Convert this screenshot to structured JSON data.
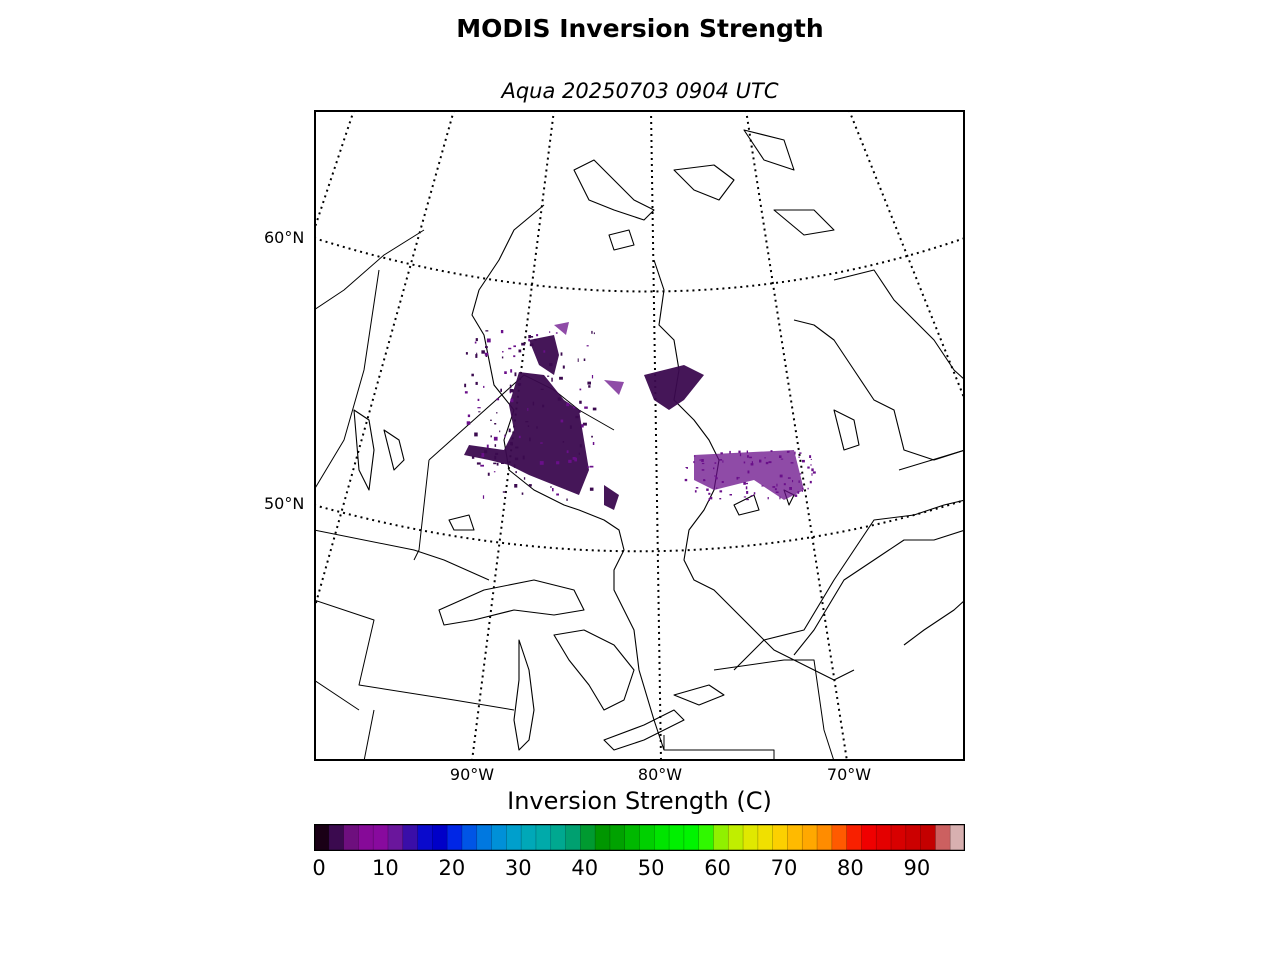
{
  "figure": {
    "title": "MODIS Inversion Strength",
    "subtitle": "Aqua 20250703 0904 UTC"
  },
  "map": {
    "projection": "conic",
    "lat_labels": [
      {
        "text": "60°N",
        "lat": 60
      },
      {
        "text": "50°N",
        "lat": 50
      }
    ],
    "lon_labels": [
      {
        "text": "90°W",
        "lon": -90
      },
      {
        "text": "80°W",
        "lon": -80
      },
      {
        "text": "70°W",
        "lon": -70
      }
    ],
    "graticule_style": "dotted",
    "data_color": "#3b0a4f",
    "data_color_light": "#6a0f8a"
  },
  "colorbar": {
    "label": "Inversion Strength (C)",
    "min": 0,
    "max": 98,
    "ticks": [
      "0",
      "10",
      "20",
      "30",
      "40",
      "50",
      "60",
      "70",
      "80",
      "90"
    ],
    "colors": [
      "#1a0016",
      "#3b0a4f",
      "#6e0f7e",
      "#860a98",
      "#880a9e",
      "#6a169c",
      "#3a0ea8",
      "#0a0acc",
      "#0000c8",
      "#0026e6",
      "#0055e6",
      "#0078e0",
      "#0090d8",
      "#009fcc",
      "#00a8b8",
      "#00aaaa",
      "#00a890",
      "#00a070",
      "#009a30",
      "#009600",
      "#00a200",
      "#00b800",
      "#00d000",
      "#00e400",
      "#00f000",
      "#00f400",
      "#30f800",
      "#90f000",
      "#c0ee00",
      "#e0e800",
      "#f0e000",
      "#fcd000",
      "#ffba00",
      "#ffa800",
      "#ff8c00",
      "#ff5a00",
      "#f82000",
      "#f00000",
      "#e40000",
      "#d80000",
      "#cc0000",
      "#c40000",
      "#cc6060",
      "#d8b0b0"
    ]
  }
}
